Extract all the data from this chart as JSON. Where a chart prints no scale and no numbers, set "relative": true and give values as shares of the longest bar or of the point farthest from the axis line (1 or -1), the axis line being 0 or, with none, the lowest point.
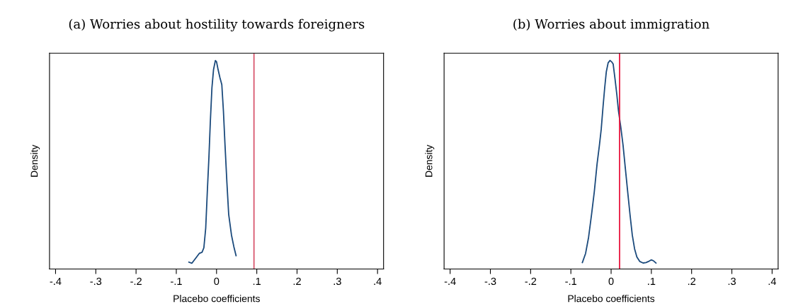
{
  "chart_data": [
    {
      "type": "line",
      "title": "(a) Worries about hostility towards foreigners",
      "xlabel": "Placebo coefficients",
      "ylabel": "Density",
      "relative": true,
      "xlim": [
        -0.415,
        0.415
      ],
      "xticks": [
        {
          "value": -0.4,
          "label": "-.4"
        },
        {
          "value": -0.3,
          "label": "-.3"
        },
        {
          "value": -0.2,
          "label": "-.2"
        },
        {
          "value": -0.1,
          "label": "-.1"
        },
        0,
        {
          "value": 0.1,
          "label": ".1"
        },
        {
          "value": 0.2,
          "label": ".2"
        },
        {
          "value": 0.3,
          "label": ".3"
        },
        {
          "value": 0.4,
          "label": ".4"
        }
      ],
      "tick_labels": "x",
      "grid": false,
      "legend": false,
      "series": [
        {
          "color": "#1b4a7c",
          "x": [
            -0.0687,
            -0.0612,
            -0.0515,
            -0.0429,
            -0.0361,
            -0.0315,
            -0.0269,
            -0.0229,
            -0.0189,
            -0.0155,
            -0.0115,
            -0.0075,
            -0.0029,
            0.0,
            0.0039,
            0.0085,
            0.0131,
            0.0171,
            0.0211,
            0.0257,
            0.0302,
            0.0371,
            0.0429,
            0.0485
          ],
          "values": [
            0.033,
            0.028,
            0.053,
            0.075,
            0.08,
            0.102,
            0.196,
            0.372,
            0.537,
            0.703,
            0.868,
            0.956,
            1,
            0.994,
            0.956,
            0.917,
            0.884,
            0.758,
            0.593,
            0.416,
            0.262,
            0.163,
            0.108,
            0.064
          ]
        }
      ],
      "ref_lines": [
        {
          "axis": "x",
          "value": 0.093,
          "color": "#d9586e"
        }
      ]
    },
    {
      "type": "line",
      "title": "(b) Worries about immigration",
      "xlabel": "Placebo coefficients",
      "ylabel": "Density",
      "relative": true,
      "xlim": [
        -0.415,
        0.415
      ],
      "xticks": [
        {
          "value": -0.4,
          "label": "-.4"
        },
        {
          "value": -0.3,
          "label": "-.3"
        },
        {
          "value": -0.2,
          "label": "-.2"
        },
        {
          "value": -0.1,
          "label": "-.1"
        },
        0,
        {
          "value": 0.1,
          "label": ".1"
        },
        {
          "value": 0.2,
          "label": ".2"
        },
        {
          "value": 0.3,
          "label": ".3"
        },
        {
          "value": 0.4,
          "label": ".4"
        }
      ],
      "tick_labels": "x",
      "grid": false,
      "legend": false,
      "series": [
        {
          "color": "#1b4a7c",
          "x": [
            -0.0714,
            -0.0634,
            -0.056,
            -0.0486,
            -0.0417,
            -0.0349,
            -0.0291,
            -0.0246,
            -0.02,
            -0.016,
            -0.012,
            -0.0074,
            -0.0029,
            0.0011,
            0.0051,
            0.0097,
            0.0143,
            0.0183,
            0.024,
            0.0297,
            0.0354,
            0.0411,
            0.0469,
            0.0526,
            0.0583,
            0.064,
            0.0714,
            0.0794,
            0.0869,
            0.0926,
            0.1,
            0.1057,
            0.1114
          ],
          "values": [
            0.031,
            0.075,
            0.152,
            0.262,
            0.372,
            0.504,
            0.593,
            0.67,
            0.78,
            0.868,
            0.945,
            0.989,
            1,
            0.994,
            0.983,
            0.912,
            0.835,
            0.758,
            0.681,
            0.593,
            0.482,
            0.372,
            0.262,
            0.163,
            0.097,
            0.058,
            0.036,
            0.029,
            0.031,
            0.036,
            0.044,
            0.039,
            0.029
          ]
        }
      ],
      "ref_lines": [
        {
          "axis": "x",
          "value": 0.021,
          "color": "#e8173f"
        }
      ]
    }
  ]
}
